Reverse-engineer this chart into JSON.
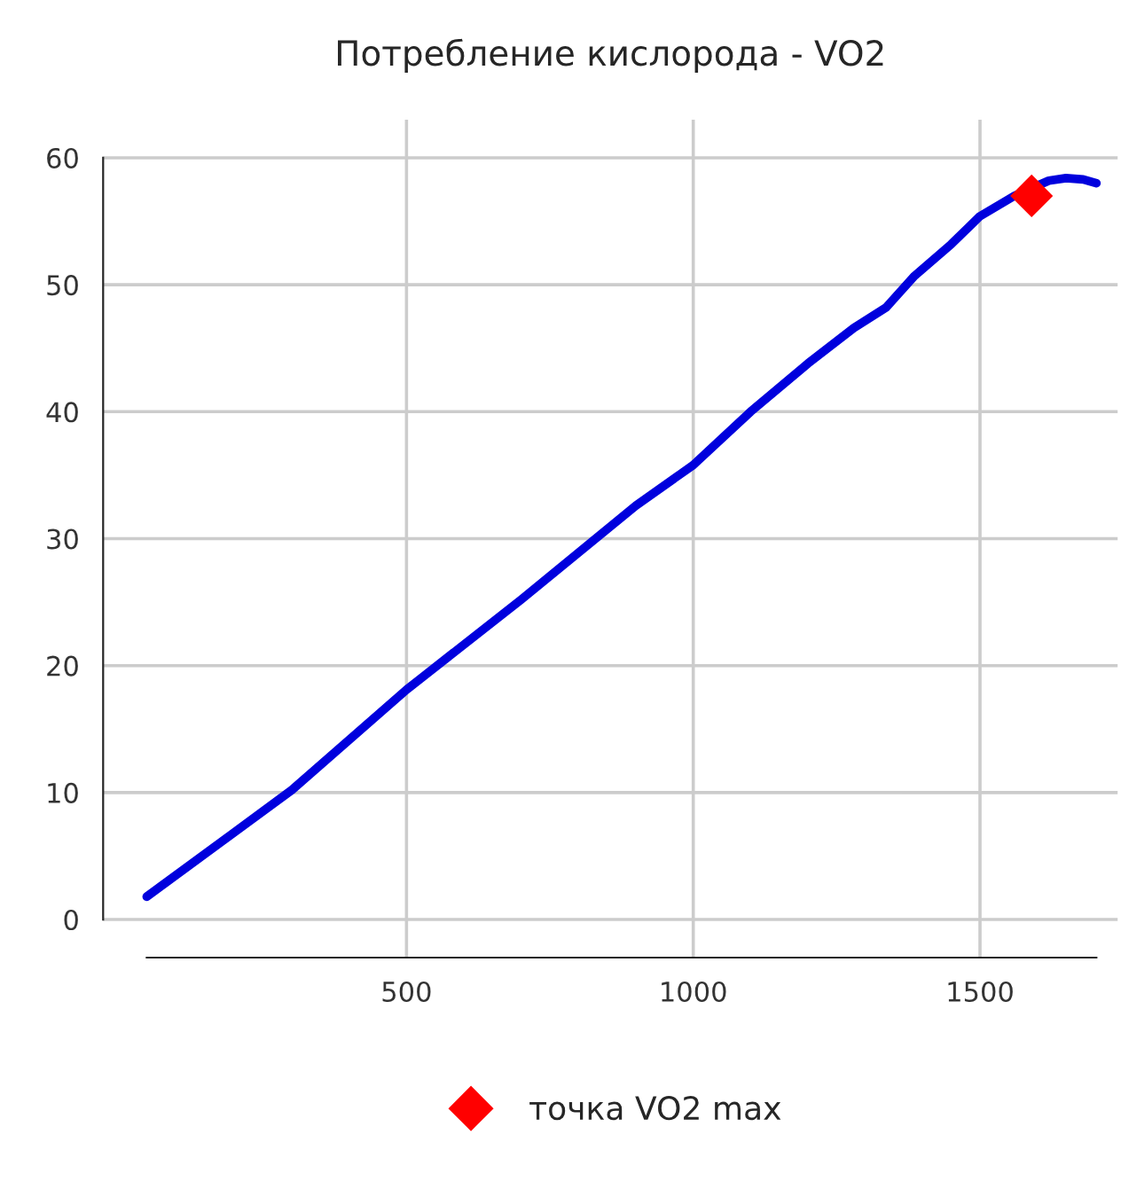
{
  "chart_data": {
    "type": "line",
    "title": "Потребление кислорода - VO2",
    "series": [
      {
        "color": "#0000dd",
        "marker": "none",
        "x": [
          47,
          300,
          500,
          700,
          900,
          1000,
          1100,
          1200,
          1280,
          1336,
          1386,
          1450,
          1500,
          1560,
          1590,
          1620,
          1650,
          1680,
          1703
        ],
        "values": [
          1.8,
          10.2,
          18.1,
          25.2,
          32.6,
          35.8,
          40.0,
          43.8,
          46.6,
          48.2,
          50.7,
          53.2,
          55.4,
          57.0,
          57.6,
          58.2,
          58.4,
          58.3,
          58.0
        ]
      },
      {
        "type": "scatter",
        "name": "точка VO2 max",
        "color": "#ff0000",
        "marker": "diamond",
        "x": [
          1590
        ],
        "values": [
          57.0
        ]
      }
    ],
    "xlim": [
      -29,
      1740
    ],
    "ylim": [
      -3,
      63
    ],
    "xticks": [
      500,
      1000,
      1500
    ],
    "yticks": [
      0,
      10,
      20,
      30,
      40,
      50,
      60
    ],
    "grid": true,
    "legend": "bottom"
  }
}
